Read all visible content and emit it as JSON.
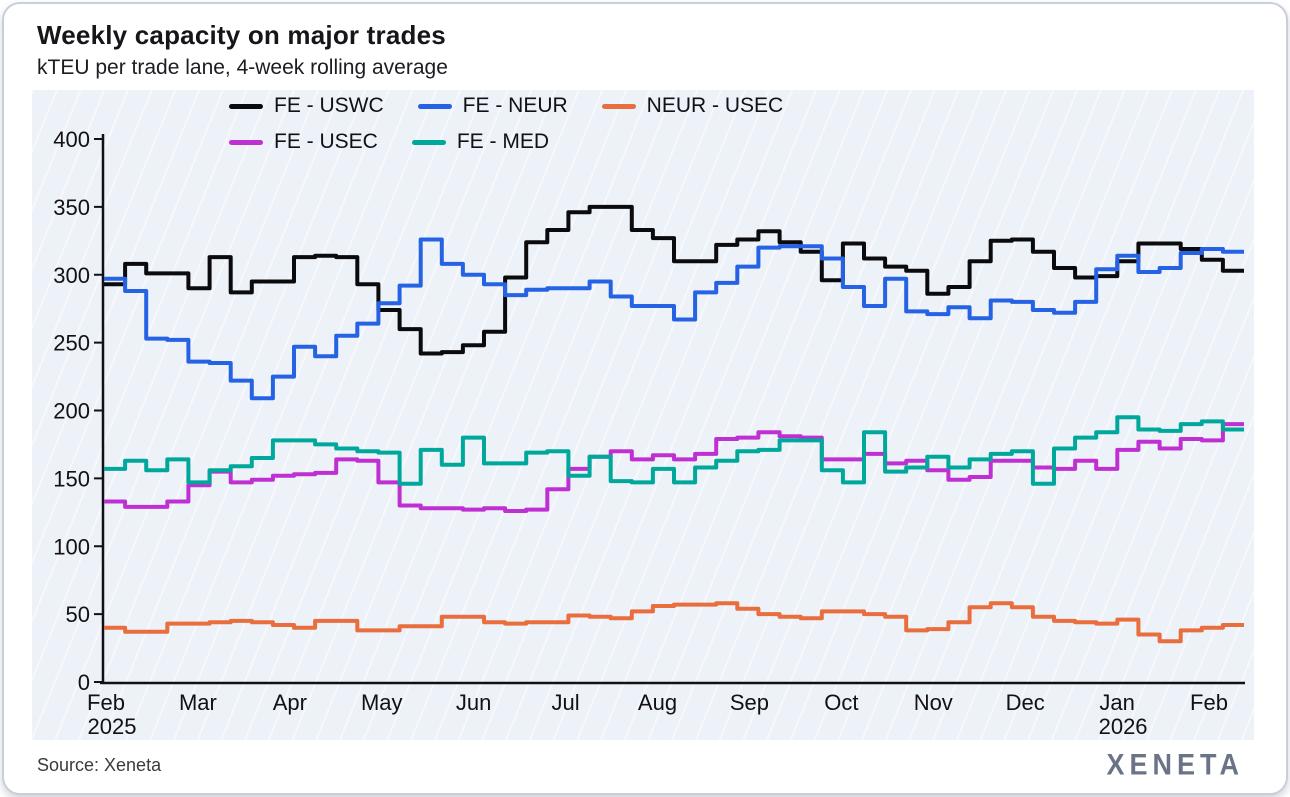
{
  "header": {
    "title": "Weekly capacity on major trades",
    "subtitle": "kTEU per trade lane, 4-week rolling average"
  },
  "legend": {
    "rows": [
      [
        {
          "label": "FE - USWC",
          "color": "#0b0b0d"
        },
        {
          "label": "FE - NEUR",
          "color": "#2563e4"
        },
        {
          "label": "NEUR - USEC",
          "color": "#e86e3e"
        }
      ],
      [
        {
          "label": "FE - USEC",
          "color": "#bf30d2"
        },
        {
          "label": "FE - MED",
          "color": "#00a79b"
        }
      ]
    ]
  },
  "chart_data": {
    "type": "line",
    "step": true,
    "title": "Weekly capacity on major trades",
    "ylabel": "kTEU per trade lane",
    "ylim": [
      0,
      400
    ],
    "grid": false,
    "legend_position": "top",
    "y_ticks": [
      0,
      50,
      100,
      150,
      200,
      250,
      300,
      350,
      400
    ],
    "x_ticks": [
      {
        "label": "Feb",
        "sub": "2025"
      },
      {
        "label": "Mar",
        "sub": ""
      },
      {
        "label": "Apr",
        "sub": ""
      },
      {
        "label": "May",
        "sub": ""
      },
      {
        "label": "Jun",
        "sub": ""
      },
      {
        "label": "Jul",
        "sub": ""
      },
      {
        "label": "Aug",
        "sub": ""
      },
      {
        "label": "Sep",
        "sub": ""
      },
      {
        "label": "Oct",
        "sub": ""
      },
      {
        "label": "Nov",
        "sub": ""
      },
      {
        "label": "Dec",
        "sub": ""
      },
      {
        "label": "Jan",
        "sub": "2026"
      },
      {
        "label": "Feb",
        "sub": ""
      }
    ],
    "x_unit": "week",
    "series": [
      {
        "name": "FE - USWC",
        "color": "#0b0b0d",
        "values": [
          293,
          308,
          301,
          301,
          290,
          313,
          287,
          295,
          295,
          313,
          314,
          313,
          293,
          274,
          260,
          242,
          243,
          248,
          258,
          298,
          324,
          333,
          346,
          350,
          350,
          333,
          327,
          310,
          310,
          322,
          326,
          332,
          324,
          317,
          296,
          323,
          312,
          306,
          303,
          286,
          291,
          310,
          325,
          326,
          317,
          305,
          298,
          299,
          310,
          323,
          323,
          319,
          311,
          303
        ]
      },
      {
        "name": "FE - NEUR",
        "color": "#2563e4",
        "values": [
          297,
          288,
          253,
          252,
          236,
          235,
          222,
          209,
          225,
          247,
          240,
          255,
          264,
          279,
          292,
          326,
          308,
          300,
          293,
          285,
          289,
          290,
          290,
          295,
          284,
          277,
          277,
          267,
          287,
          294,
          306,
          320,
          321,
          321,
          312,
          291,
          277,
          297,
          273,
          271,
          276,
          268,
          281,
          280,
          274,
          272,
          280,
          304,
          314,
          302,
          305,
          316,
          319,
          317
        ]
      },
      {
        "name": "NEUR - USEC",
        "color": "#e86e3e",
        "values": [
          40,
          37,
          37,
          43,
          43,
          44,
          45,
          44,
          42,
          40,
          45,
          45,
          38,
          38,
          41,
          41,
          48,
          48,
          44,
          43,
          44,
          44,
          49,
          48,
          47,
          52,
          56,
          57,
          57,
          58,
          54,
          50,
          48,
          47,
          52,
          52,
          50,
          48,
          38,
          39,
          44,
          55,
          58,
          55,
          48,
          45,
          44,
          43,
          46,
          35,
          30,
          38,
          40,
          42
        ]
      },
      {
        "name": "FE - USEC",
        "color": "#bf30d2",
        "values": [
          133,
          129,
          129,
          133,
          145,
          155,
          147,
          149,
          152,
          153,
          154,
          164,
          163,
          147,
          130,
          128,
          128,
          127,
          128,
          126,
          127,
          142,
          157,
          166,
          170,
          164,
          167,
          164,
          168,
          179,
          180,
          184,
          181,
          180,
          164,
          164,
          168,
          161,
          163,
          156,
          149,
          151,
          163,
          163,
          158,
          157,
          163,
          157,
          171,
          177,
          172,
          179,
          178,
          190
        ]
      },
      {
        "name": "FE - MED",
        "color": "#00a79b",
        "values": [
          157,
          163,
          156,
          164,
          147,
          156,
          159,
          165,
          178,
          178,
          175,
          172,
          170,
          169,
          146,
          171,
          160,
          180,
          161,
          161,
          169,
          170,
          152,
          166,
          148,
          147,
          157,
          147,
          158,
          163,
          170,
          171,
          178,
          178,
          156,
          147,
          184,
          155,
          158,
          166,
          158,
          164,
          168,
          170,
          146,
          172,
          180,
          184,
          195,
          186,
          185,
          190,
          192,
          186
        ]
      }
    ]
  },
  "footer": {
    "source": "Source: Xeneta",
    "logo": "XENETA"
  }
}
